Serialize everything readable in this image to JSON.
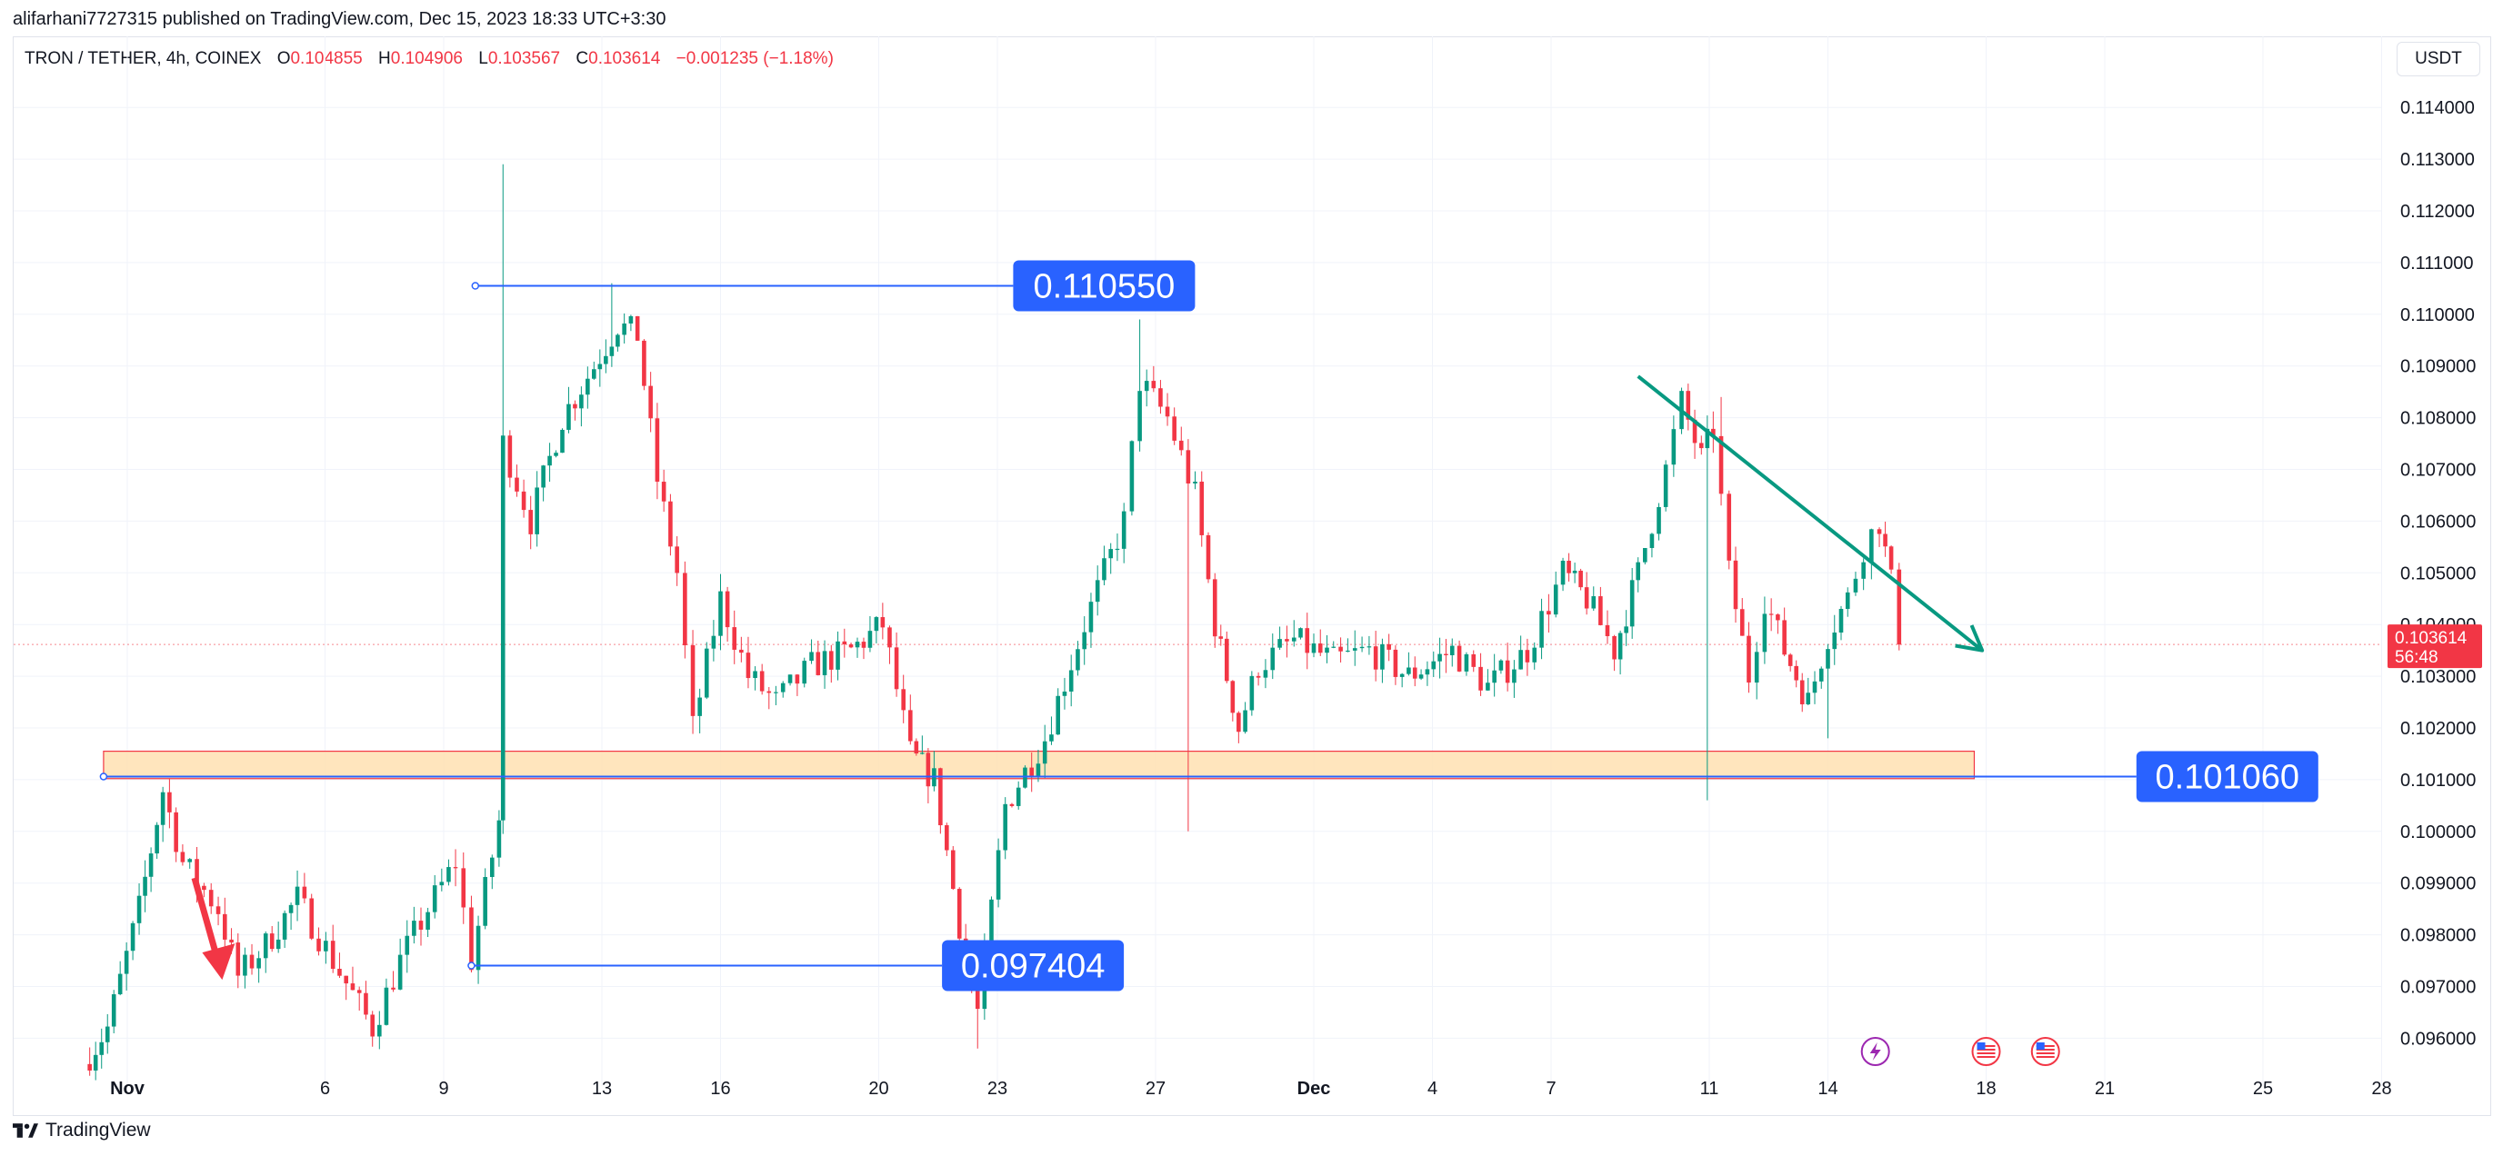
{
  "header": {
    "publisher": "alifarhani7727315 published on TradingView.com, Dec 15, 2023 18:33 UTC+3:30"
  },
  "legend": {
    "symbol": "TRON / TETHER, 4h, COINEX",
    "o_label": "O",
    "o": "0.104855",
    "h_label": "H",
    "h": "0.104906",
    "l_label": "L",
    "l": "0.103567",
    "c_label": "C",
    "c": "0.103614",
    "change": "−0.001235 (−1.18%)"
  },
  "currency": "USDT",
  "footer": {
    "brand": "TradingView"
  },
  "colors": {
    "up": "#089981",
    "down": "#f23645",
    "line": "#2962ff",
    "label_bg": "#2962ff",
    "trend": "#089981",
    "zone_fill": "#ffe0b2",
    "zone_border": "#f23645"
  },
  "chart_data": {
    "type": "candlestick",
    "ylim": [
      0.095,
      0.115
    ],
    "x_axis": {
      "ticks": [
        {
          "label": "Nov",
          "day": 0,
          "bold": true
        },
        {
          "label": "6",
          "day": 5
        },
        {
          "label": "9",
          "day": 8
        },
        {
          "label": "13",
          "day": 12
        },
        {
          "label": "16",
          "day": 15
        },
        {
          "label": "20",
          "day": 19
        },
        {
          "label": "23",
          "day": 22
        },
        {
          "label": "27",
          "day": 26
        },
        {
          "label": "Dec",
          "day": 30,
          "bold": true
        },
        {
          "label": "4",
          "day": 33
        },
        {
          "label": "7",
          "day": 36
        },
        {
          "label": "11",
          "day": 40
        },
        {
          "label": "14",
          "day": 43
        },
        {
          "label": "18",
          "day": 47
        },
        {
          "label": "21",
          "day": 50
        },
        {
          "label": "25",
          "day": 54
        },
        {
          "label": "28",
          "day": 57
        }
      ]
    },
    "y_ticks": [
      "0.114000",
      "0.113000",
      "0.112000",
      "0.111000",
      "0.110000",
      "0.109000",
      "0.108000",
      "0.107000",
      "0.106000",
      "0.105000",
      "0.104000",
      "0.103000",
      "0.102000",
      "0.101000",
      "0.100000",
      "0.099000",
      "0.098000",
      "0.097000",
      "0.096000"
    ],
    "y_tick_values": [
      0.114,
      0.113,
      0.112,
      0.111,
      0.11,
      0.109,
      0.108,
      0.107,
      0.106,
      0.105,
      0.104,
      0.103,
      0.102,
      0.101,
      0.1,
      0.099,
      0.098,
      0.097,
      0.096
    ],
    "last_price": {
      "value": 0.103614,
      "label": "0.103614",
      "countdown": "56:48"
    },
    "anchors": [
      {
        "day": -1.1,
        "p": 0.0955
      },
      {
        "day": -0.5,
        "p": 0.0962
      },
      {
        "day": 0.3,
        "p": 0.0985
      },
      {
        "day": 0.9,
        "p": 0.1008
      },
      {
        "day": 1.4,
        "p": 0.0994
      },
      {
        "day": 2.3,
        "p": 0.0985
      },
      {
        "day": 2.8,
        "p": 0.0972
      },
      {
        "day": 3.5,
        "p": 0.0978
      },
      {
        "day": 4.3,
        "p": 0.0987
      },
      {
        "day": 5.2,
        "p": 0.0975
      },
      {
        "day": 6.2,
        "p": 0.0962
      },
      {
        "day": 6.9,
        "p": 0.0975
      },
      {
        "day": 7.6,
        "p": 0.0985
      },
      {
        "day": 8.3,
        "p": 0.0994
      },
      {
        "day": 8.7,
        "p": 0.0975
      },
      {
        "day": 9.4,
        "p": 0.1002
      },
      {
        "day": 9.5,
        "p": 0.1075
      },
      {
        "day": 10.2,
        "p": 0.106
      },
      {
        "day": 11.0,
        "p": 0.108
      },
      {
        "day": 11.8,
        "p": 0.109
      },
      {
        "day": 12.4,
        "p": 0.1098
      },
      {
        "day": 12.9,
        "p": 0.1096
      },
      {
        "day": 13.4,
        "p": 0.1068
      },
      {
        "day": 13.9,
        "p": 0.105
      },
      {
        "day": 14.3,
        "p": 0.102
      },
      {
        "day": 15.0,
        "p": 0.1045
      },
      {
        "day": 15.7,
        "p": 0.103
      },
      {
        "day": 16.4,
        "p": 0.1025
      },
      {
        "day": 17.3,
        "p": 0.1032
      },
      {
        "day": 18.3,
        "p": 0.1035
      },
      {
        "day": 19.1,
        "p": 0.104
      },
      {
        "day": 19.8,
        "p": 0.1015
      },
      {
        "day": 20.4,
        "p": 0.101
      },
      {
        "day": 21.2,
        "p": 0.0975
      },
      {
        "day": 21.5,
        "p": 0.0965
      },
      {
        "day": 22.2,
        "p": 0.1005
      },
      {
        "day": 23.2,
        "p": 0.1018
      },
      {
        "day": 24.2,
        "p": 0.104
      },
      {
        "day": 25.2,
        "p": 0.106
      },
      {
        "day": 25.6,
        "p": 0.1087
      },
      {
        "day": 26.3,
        "p": 0.108
      },
      {
        "day": 27.0,
        "p": 0.1065
      },
      {
        "day": 27.5,
        "p": 0.104
      },
      {
        "day": 28.1,
        "p": 0.102
      },
      {
        "day": 28.6,
        "p": 0.1032
      },
      {
        "day": 29.5,
        "p": 0.1037
      },
      {
        "day": 30.5,
        "p": 0.1033
      },
      {
        "day": 31.4,
        "p": 0.1035
      },
      {
        "day": 32.4,
        "p": 0.103
      },
      {
        "day": 33.5,
        "p": 0.1035
      },
      {
        "day": 34.4,
        "p": 0.1028
      },
      {
        "day": 35.4,
        "p": 0.1035
      },
      {
        "day": 36.3,
        "p": 0.105
      },
      {
        "day": 36.9,
        "p": 0.1045
      },
      {
        "day": 37.6,
        "p": 0.1035
      },
      {
        "day": 38.2,
        "p": 0.105
      },
      {
        "day": 38.9,
        "p": 0.107
      },
      {
        "day": 39.3,
        "p": 0.1083
      },
      {
        "day": 39.8,
        "p": 0.1072
      },
      {
        "day": 40.1,
        "p": 0.1078
      },
      {
        "day": 40.5,
        "p": 0.105
      },
      {
        "day": 41.0,
        "p": 0.103
      },
      {
        "day": 41.4,
        "p": 0.1045
      },
      {
        "day": 41.9,
        "p": 0.1035
      },
      {
        "day": 42.5,
        "p": 0.1025
      },
      {
        "day": 43.0,
        "p": 0.1038
      },
      {
        "day": 43.5,
        "p": 0.1045
      },
      {
        "day": 43.9,
        "p": 0.1055
      },
      {
        "day": 44.3,
        "p": 0.106
      },
      {
        "day": 44.6,
        "p": 0.1048
      },
      {
        "day": 44.8,
        "p": 0.103614
      }
    ],
    "levels": [
      {
        "name": "upper",
        "value": 0.11055,
        "label": "0.110550",
        "from_day": 8.8,
        "to_day": 22.4
      },
      {
        "name": "middle",
        "value": 0.10106,
        "label": "0.101060",
        "from_day": -0.6,
        "to_day": 50.8
      },
      {
        "name": "lower",
        "value": 0.097404,
        "label": "0.097404",
        "from_day": 8.7,
        "to_day": 20.6
      }
    ],
    "zone": {
      "from_day": -0.6,
      "to_day": 46.7,
      "top": 0.10155,
      "bottom": 0.10102
    },
    "trendline": {
      "from": {
        "day": 38.2,
        "p": 0.1088
      },
      "to": {
        "day": 46.9,
        "p": 0.1035
      }
    },
    "sell_arrow": {
      "from": {
        "day": 1.7,
        "p": 0.0991
      },
      "to": {
        "day": 2.4,
        "p": 0.0972
      }
    }
  }
}
